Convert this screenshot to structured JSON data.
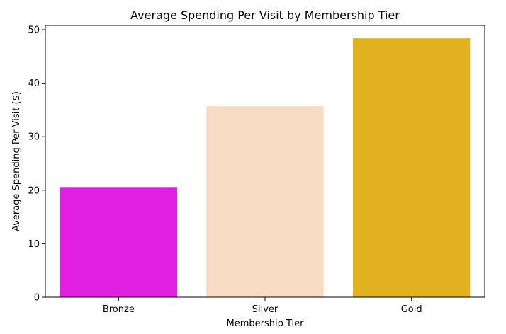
{
  "chart_data": {
    "type": "bar",
    "title": "Average Spending Per Visit by Membership Tier",
    "xlabel": "Membership Tier",
    "ylabel": "Average Spending Per Visit ($)",
    "categories": [
      "Bronze",
      "Silver",
      "Gold"
    ],
    "values": [
      20.6,
      35.7,
      48.4
    ],
    "colors": [
      "#e11fe0",
      "#f7dbc2",
      "#e2b11f"
    ],
    "ylim": [
      0,
      50.8
    ],
    "yticks": [
      0,
      10,
      20,
      30,
      40,
      50
    ],
    "grid": false
  }
}
